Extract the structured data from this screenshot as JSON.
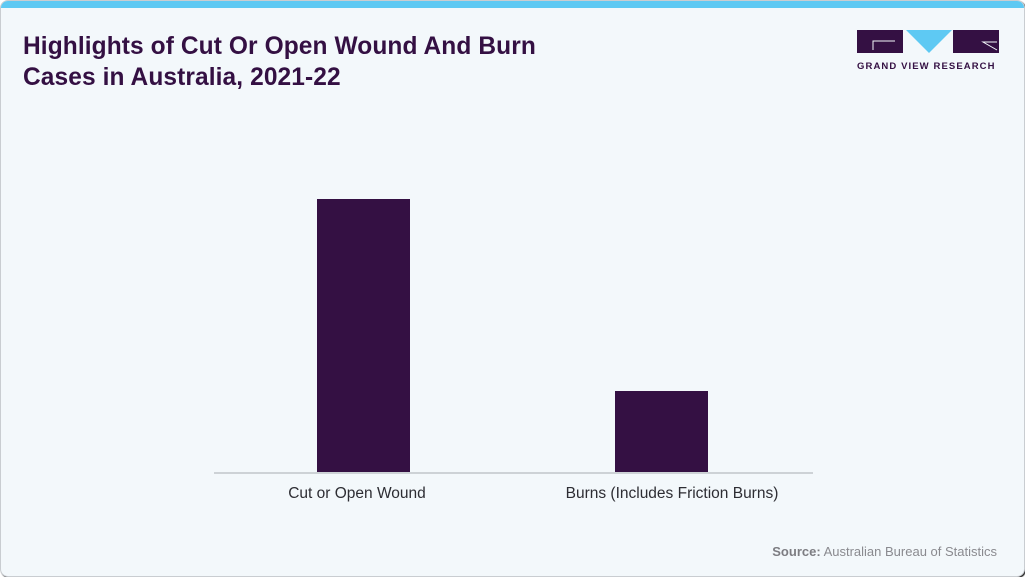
{
  "header": {
    "title": "Highlights of Cut Or Open Wound And Burn Cases in Australia, 2021-22",
    "title_line1": "Highlights of Cut Or Open Wound And Burn",
    "title_line2": "Cases in Australia, 2021-22"
  },
  "logo": {
    "text": "GRAND VIEW RESEARCH",
    "icon": "gvr-logo-icon"
  },
  "colors": {
    "bar": "#341043",
    "accent": "#5ec9f3",
    "background": "#f3f8fb",
    "title": "#341043"
  },
  "footer": {
    "source_label": "Source:",
    "source_text": "Australian Bureau of Statistics"
  },
  "chart_data": {
    "type": "bar",
    "title": "Highlights of Cut Or Open Wound And Burn Cases in Australia, 2021-22",
    "categories": [
      "Cut or Open Wound",
      "Burns (Includes Friction Burns)"
    ],
    "values": [
      100,
      30
    ],
    "value_note": "No axis or data labels shown; values are relative bar heights (Cut or Open Wound = 100).",
    "xlabel": "",
    "ylabel": "",
    "ylim": [
      0,
      105
    ],
    "grid": false,
    "legend": null,
    "source": "Australian Bureau of Statistics"
  }
}
